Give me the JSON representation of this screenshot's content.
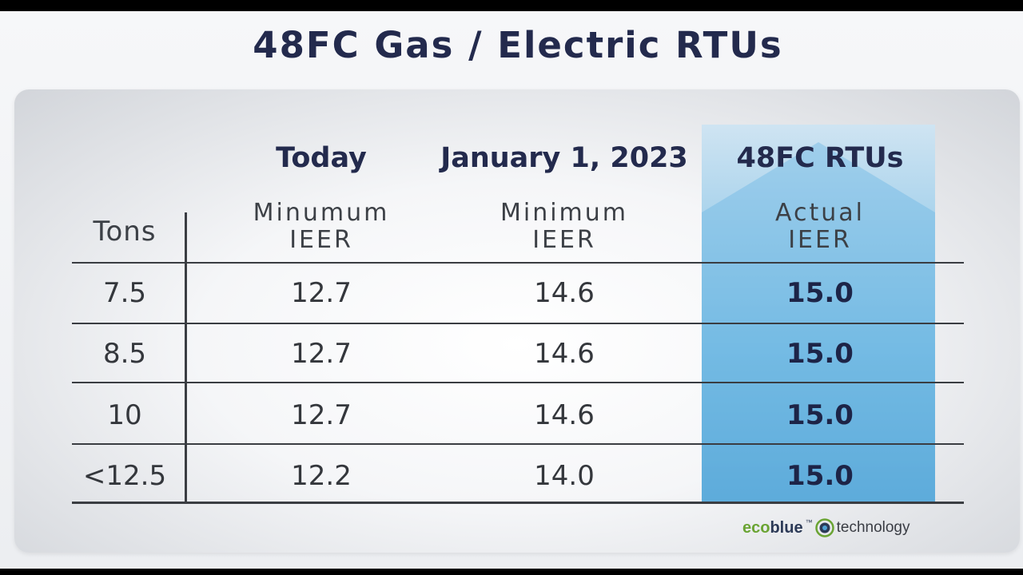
{
  "title": "48FC Gas / Electric RTUs",
  "colors": {
    "title": "#232a4d",
    "highlight_top": "#cfe4f2",
    "highlight_bottom": "#4fa1d3",
    "rule": "#3a3d42",
    "logo_green": "#6aa433",
    "logo_navy": "#2c3a57"
  },
  "table": {
    "tons_label": "Tons",
    "columns": [
      {
        "header": "Today",
        "sub1": "Minumum",
        "sub2": "IEER"
      },
      {
        "header": "January 1, 2023",
        "sub1": "Minimum",
        "sub2": "IEER"
      },
      {
        "header": "48FC RTUs",
        "sub1": "Actual",
        "sub2": "IEER"
      }
    ],
    "rows": [
      {
        "tons": "7.5",
        "today": "12.7",
        "jan2023": "14.6",
        "actual": "15.0"
      },
      {
        "tons": "8.5",
        "today": "12.7",
        "jan2023": "14.6",
        "actual": "15.0"
      },
      {
        "tons": "10",
        "today": "12.7",
        "jan2023": "14.6",
        "actual": "15.0"
      },
      {
        "tons": "<12.5",
        "today": "12.2",
        "jan2023": "14.0",
        "actual": "15.0"
      }
    ]
  },
  "logo": {
    "eco": "eco",
    "blue": "blue",
    "tm": "™",
    "technology": "technology",
    "icon": "ecoblue-ring-icon"
  }
}
